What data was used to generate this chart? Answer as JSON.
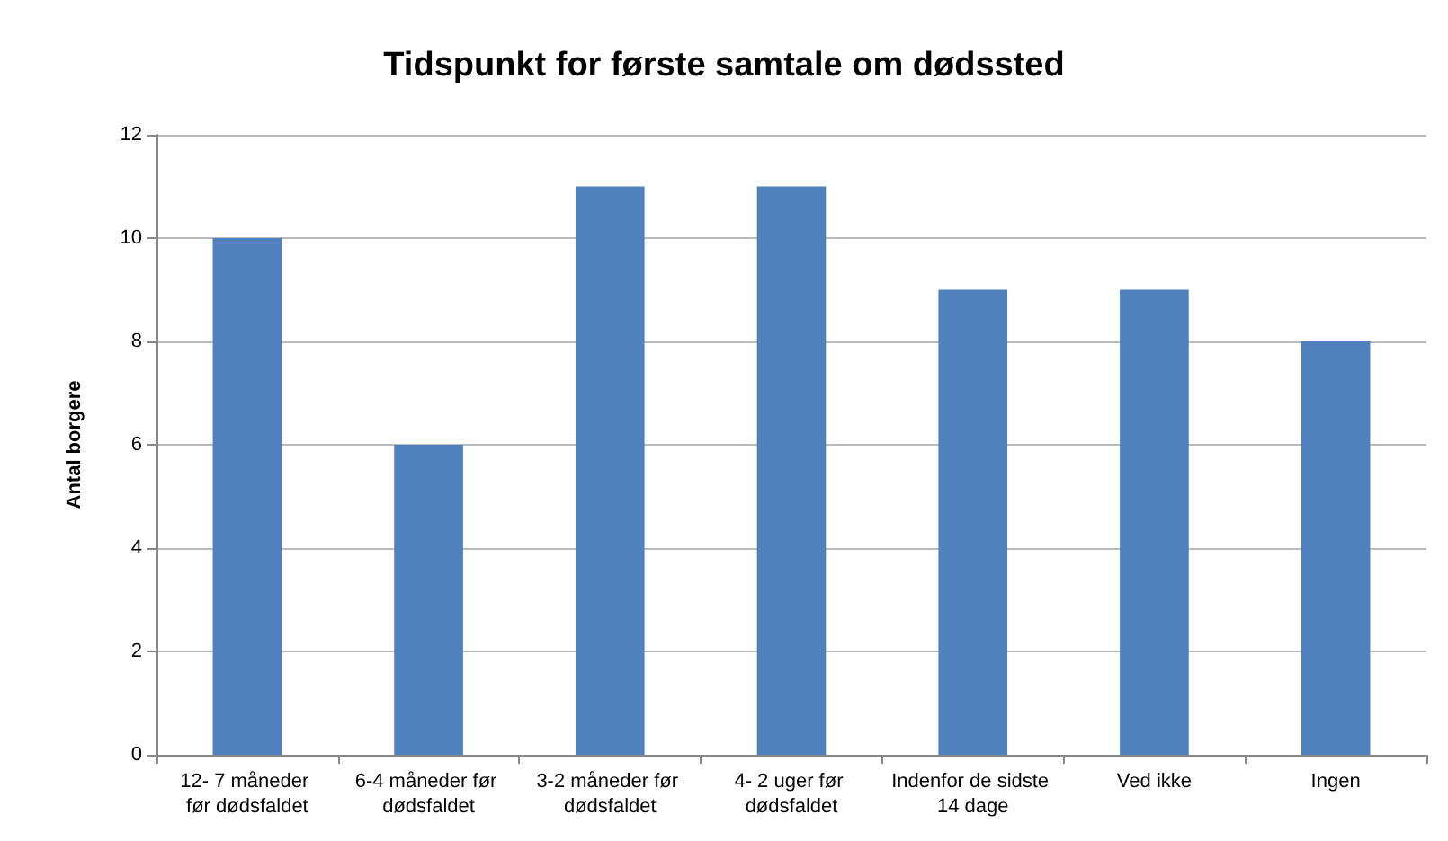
{
  "chart_data": {
    "type": "bar",
    "title": "Tidspunkt for første samtale om dødssted",
    "ylabel": "Antal borgere",
    "categories": [
      "12- 7 måneder før dødsfaldet",
      "6-4 måneder før dødsfaldet",
      "3-2 måneder før dødsfaldet",
      "4- 2 uger før dødsfaldet",
      "Indenfor de sidste 14 dage",
      "Ved ikke",
      "Ingen"
    ],
    "values": [
      10,
      6,
      11,
      11,
      9,
      9,
      8
    ],
    "color": "#4f81bd",
    "ylim": [
      0,
      12
    ],
    "yticks": [
      0,
      2,
      4,
      6,
      8,
      10,
      12
    ],
    "grid": "y"
  }
}
